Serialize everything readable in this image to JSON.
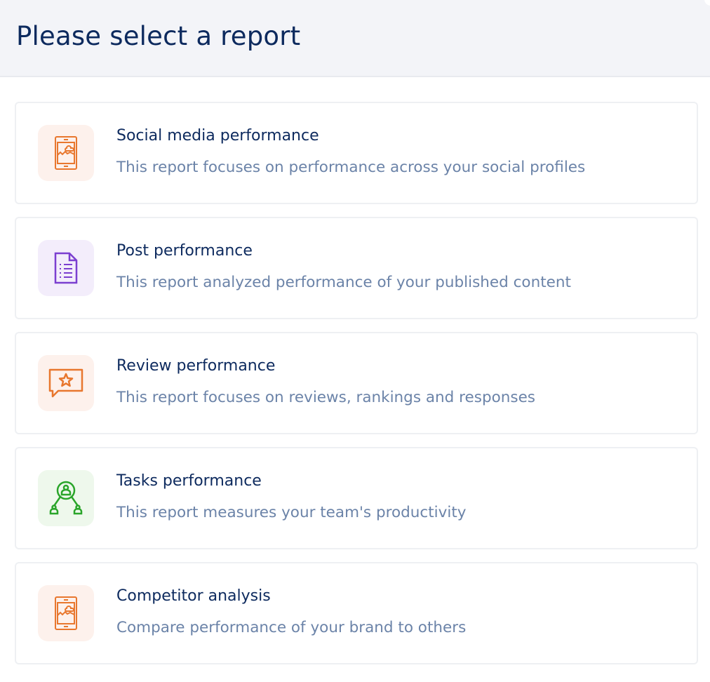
{
  "header": {
    "title": "Please select a report"
  },
  "reports": [
    {
      "title": "Social media performance",
      "description": "This report focuses on performance across your social profiles",
      "icon": "mobile-chart-icon",
      "color": "#e8772e",
      "bg": "#fdf1ec"
    },
    {
      "title": "Post performance",
      "description": "This report analyzed performance of your published content",
      "icon": "document-list-icon",
      "color": "#7b3fd0",
      "bg": "#f3edfb"
    },
    {
      "title": "Review performance",
      "description": "This report focuses on reviews, rankings and responses",
      "icon": "chat-star-icon",
      "color": "#e8772e",
      "bg": "#fdf1ec"
    },
    {
      "title": "Tasks performance",
      "description": "This report measures your team's productivity",
      "icon": "team-hierarchy-icon",
      "color": "#2aa52a",
      "bg": "#eef8ec"
    },
    {
      "title": "Competitor analysis",
      "description": "Compare performance of your brand to others",
      "icon": "mobile-chart-icon",
      "color": "#e8772e",
      "bg": "#fdf1ec"
    }
  ]
}
